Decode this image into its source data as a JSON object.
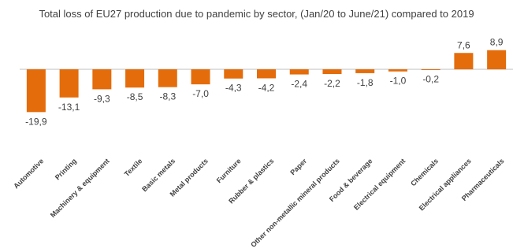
{
  "chart_data": {
    "type": "bar",
    "title": "Total loss of EU27 production due to pandemic by sector, (Jan/20 to June/21) compared to 2019",
    "categories": [
      "Automotive",
      "Printing",
      "Machinery & equipment",
      "Textile",
      "Basic metals",
      "Metal products",
      "Furniture",
      "Rubber & plastics",
      "Paper",
      "Other non-metallic mineral products",
      "Food & beverage",
      "Electrical equipment",
      "Chemicals",
      "Electrical appliances",
      "Pharmaceuticals"
    ],
    "values": [
      -19.9,
      -13.1,
      -9.3,
      -8.5,
      -8.3,
      -7.0,
      -4.3,
      -4.2,
      -2.4,
      -2.2,
      -1.8,
      -1.0,
      -0.2,
      7.6,
      8.9
    ],
    "value_labels": [
      "-19,9",
      "-13,1",
      "-9,3",
      "-8,5",
      "-8,3",
      "-7,0",
      "-4,3",
      "-4,2",
      "-2,4",
      "-2,2",
      "-1,8",
      "-1,0",
      "-0,2",
      "7,6",
      "8,9"
    ],
    "bar_color": "#E46C0A",
    "axis_color": "#BFBFBF",
    "label_color": "#404040",
    "legend": "none",
    "grid": false
  }
}
